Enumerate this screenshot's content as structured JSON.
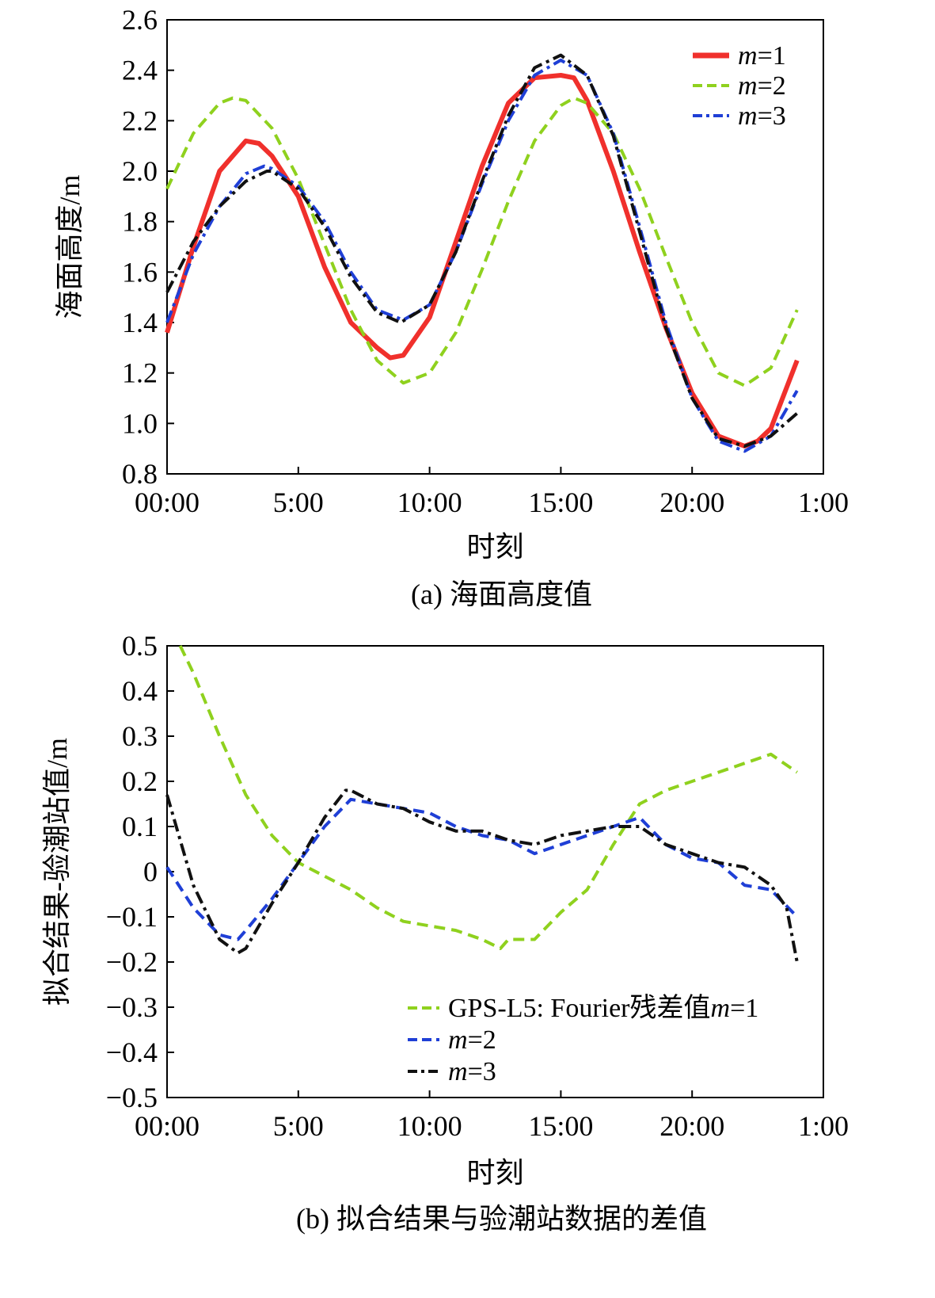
{
  "colors": {
    "m1": "#f0302c",
    "m2": "#8fd11e",
    "m3": "#1f3fd6",
    "obs": "#111111"
  },
  "chart_data": [
    {
      "type": "line",
      "caption": "(a) 海面高度值",
      "xlabel": "时刻",
      "ylabel": "海面高度/m",
      "x_unit": "hours",
      "xlim": [
        0,
        25
      ],
      "ylim": [
        0.8,
        2.6
      ],
      "x_ticks": [
        0,
        5,
        10,
        15,
        20,
        25
      ],
      "x_tick_labels": [
        "00:00",
        "5:00",
        "10:00",
        "15:00",
        "20:00",
        "1:00"
      ],
      "y_ticks": [
        0.8,
        1.0,
        1.2,
        1.4,
        1.6,
        1.8,
        2.0,
        2.2,
        2.4,
        2.6
      ],
      "y_tick_labels": [
        "0.8",
        "1.0",
        "1.2",
        "1.4",
        "1.6",
        "1.8",
        "2.0",
        "2.2",
        "2.4",
        "2.6"
      ],
      "legend_position": "top-right",
      "legend": [
        {
          "prefix": "",
          "name": "m",
          "suffix": "=1",
          "color_key": "m1",
          "style": "solid"
        },
        {
          "prefix": "",
          "name": "m",
          "suffix": "=2",
          "color_key": "m2",
          "style": "dashed"
        },
        {
          "prefix": "",
          "name": "m",
          "suffix": "=3",
          "color_key": "m3",
          "style": "dashdot"
        }
      ],
      "series": [
        {
          "name": "m=1",
          "color_key": "m1",
          "style": "solid",
          "width": 6,
          "x": [
            0,
            1,
            2,
            3,
            3.5,
            4,
            5,
            6,
            7,
            8,
            8.5,
            9,
            10,
            11,
            12,
            13,
            14,
            15,
            15.5,
            16,
            17,
            18,
            19,
            20,
            21,
            22,
            22.5,
            23,
            24
          ],
          "y": [
            1.36,
            1.7,
            2.0,
            2.12,
            2.11,
            2.06,
            1.9,
            1.62,
            1.4,
            1.3,
            1.26,
            1.27,
            1.42,
            1.72,
            2.02,
            2.27,
            2.37,
            2.38,
            2.37,
            2.28,
            2.0,
            1.68,
            1.38,
            1.12,
            0.95,
            0.91,
            0.93,
            0.98,
            1.25
          ]
        },
        {
          "name": "m=2",
          "color_key": "m2",
          "style": "dashed",
          "width": 4,
          "x": [
            0,
            1,
            2,
            2.5,
            3,
            4,
            5,
            6,
            7,
            8,
            9,
            10,
            11,
            12,
            13,
            14,
            15,
            15.5,
            16,
            17,
            18,
            19,
            20,
            21,
            22,
            23,
            24
          ],
          "y": [
            1.93,
            2.15,
            2.27,
            2.29,
            2.28,
            2.17,
            1.97,
            1.71,
            1.45,
            1.25,
            1.16,
            1.2,
            1.36,
            1.61,
            1.88,
            2.12,
            2.26,
            2.29,
            2.27,
            2.15,
            1.93,
            1.66,
            1.4,
            1.2,
            1.15,
            1.22,
            1.45
          ]
        },
        {
          "name": "m=3",
          "color_key": "m3",
          "style": "dashdot",
          "width": 4,
          "x": [
            0,
            1,
            2,
            3,
            3.7,
            4,
            5,
            6,
            7,
            8,
            9,
            10,
            11,
            12,
            13,
            14,
            15,
            16,
            17,
            18,
            19,
            20,
            21,
            22,
            23,
            24
          ],
          "y": [
            1.4,
            1.67,
            1.86,
            1.99,
            2.02,
            2.01,
            1.94,
            1.8,
            1.6,
            1.45,
            1.41,
            1.47,
            1.68,
            1.95,
            2.2,
            2.38,
            2.44,
            2.38,
            2.15,
            1.78,
            1.4,
            1.1,
            0.93,
            0.89,
            0.95,
            1.13
          ]
        },
        {
          "name": "",
          "color_key": "obs",
          "style": "dashdot",
          "width": 4,
          "x": [
            0,
            1,
            2,
            3,
            3.8,
            4,
            5,
            6,
            7,
            8,
            8.9,
            10,
            11,
            12,
            13,
            14,
            15,
            16,
            17,
            18,
            19,
            20,
            21,
            22,
            23,
            24
          ],
          "y": [
            1.52,
            1.72,
            1.86,
            1.96,
            2.0,
            2.0,
            1.93,
            1.78,
            1.58,
            1.44,
            1.4,
            1.47,
            1.68,
            1.96,
            2.22,
            2.41,
            2.46,
            2.38,
            2.14,
            1.76,
            1.38,
            1.1,
            0.94,
            0.91,
            0.95,
            1.04
          ]
        }
      ]
    },
    {
      "type": "line",
      "caption": "(b) 拟合结果与验潮站数据的差值",
      "xlabel": "时刻",
      "ylabel": "拟合结果-验潮站值/m",
      "x_unit": "hours",
      "xlim": [
        0,
        25
      ],
      "ylim": [
        -0.5,
        0.5
      ],
      "x_ticks": [
        0,
        5,
        10,
        15,
        20,
        25
      ],
      "x_tick_labels": [
        "00:00",
        "5:00",
        "10:00",
        "15:00",
        "20:00",
        "1:00"
      ],
      "y_ticks": [
        -0.5,
        -0.4,
        -0.3,
        -0.2,
        -0.1,
        0,
        0.1,
        0.2,
        0.3,
        0.4,
        0.5
      ],
      "y_tick_labels": [
        "−0.5",
        "−0.4",
        "−0.3",
        "−0.2",
        "−0.1",
        "0",
        "0.1",
        "0.2",
        "0.3",
        "0.4",
        "0.5"
      ],
      "legend_position": "bottom-right",
      "legend": [
        {
          "prefix": "GPS-L5: Fourier残差值",
          "name": "m",
          "suffix": "=1",
          "color_key": "m2",
          "style": "dashed"
        },
        {
          "prefix": "",
          "name": "m",
          "suffix": "=2",
          "color_key": "m3",
          "style": "dashed"
        },
        {
          "prefix": "",
          "name": "m",
          "suffix": "=3",
          "color_key": "obs",
          "style": "dashdot"
        }
      ],
      "series": [
        {
          "name": "m=1",
          "color_key": "m2",
          "style": "dashed",
          "width": 4,
          "x": [
            0.5,
            1,
            2,
            3,
            4,
            5,
            6,
            7,
            8,
            9,
            10,
            11,
            12,
            12.7,
            13,
            14,
            15,
            16,
            17,
            18,
            19,
            20,
            21,
            22,
            23,
            24
          ],
          "y": [
            0.5,
            0.44,
            0.3,
            0.17,
            0.08,
            0.02,
            -0.01,
            -0.04,
            -0.08,
            -0.11,
            -0.12,
            -0.13,
            -0.15,
            -0.17,
            -0.15,
            -0.15,
            -0.09,
            -0.04,
            0.06,
            0.15,
            0.18,
            0.2,
            0.22,
            0.24,
            0.26,
            0.22
          ]
        },
        {
          "name": "m=2",
          "color_key": "m3",
          "style": "dashed",
          "width": 4,
          "x": [
            0,
            1,
            2,
            2.7,
            3,
            4,
            5,
            6,
            7,
            8,
            9,
            10,
            11,
            12,
            13,
            14,
            15,
            16,
            17,
            18,
            19,
            20,
            21,
            22,
            23,
            24
          ],
          "y": [
            0.01,
            -0.08,
            -0.14,
            -0.15,
            -0.13,
            -0.06,
            0.02,
            0.1,
            0.16,
            0.15,
            0.14,
            0.13,
            0.1,
            0.08,
            0.07,
            0.04,
            0.06,
            0.08,
            0.1,
            0.12,
            0.06,
            0.03,
            0.02,
            -0.03,
            -0.04,
            -0.1
          ]
        },
        {
          "name": "m=3",
          "color_key": "obs",
          "style": "dashdot",
          "width": 4,
          "x": [
            0,
            0.5,
            1,
            2,
            2.7,
            3,
            4,
            5,
            6,
            6.8,
            7,
            8,
            9,
            10,
            11,
            12,
            13,
            14,
            15,
            16,
            17,
            18,
            19,
            20,
            21,
            22,
            23,
            23.6,
            24
          ],
          "y": [
            0.17,
            0.07,
            -0.03,
            -0.15,
            -0.18,
            -0.17,
            -0.07,
            0.02,
            0.12,
            0.18,
            0.18,
            0.15,
            0.14,
            0.11,
            0.09,
            0.09,
            0.07,
            0.06,
            0.08,
            0.09,
            0.1,
            0.1,
            0.06,
            0.04,
            0.02,
            0.01,
            -0.03,
            -0.08,
            -0.2
          ]
        }
      ]
    }
  ]
}
